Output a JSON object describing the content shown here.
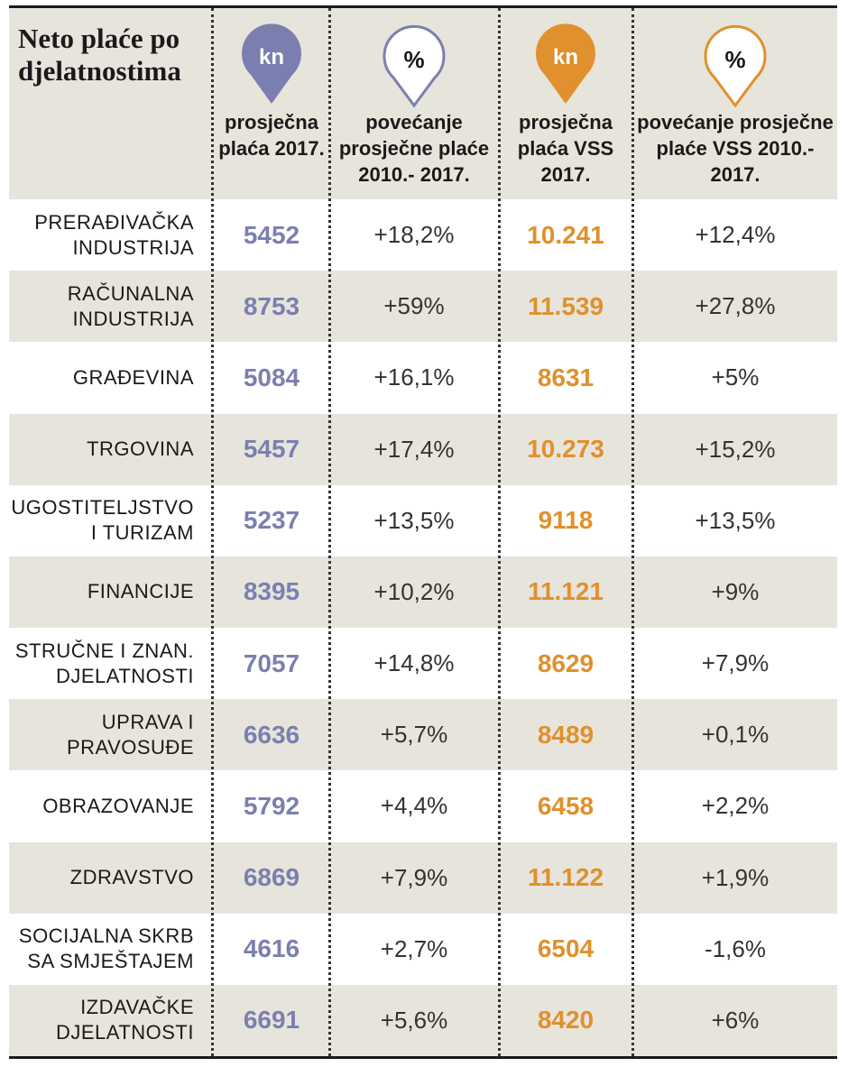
{
  "chart_data": {
    "type": "table",
    "title": "Neto plaće po djelatnostima",
    "columns": [
      {
        "key": "avg",
        "icon": "kn",
        "label": "prosječna plaća 2017."
      },
      {
        "key": "inc",
        "icon": "%",
        "label": "povećanje prosječne plaće 2010.- 2017."
      },
      {
        "key": "vss",
        "icon": "kn",
        "label": "prosječna plaća VSS 2017."
      },
      {
        "key": "incvss",
        "icon": "%",
        "label": "povećanje prosječne plaće VSS 2010.- 2017."
      }
    ],
    "rows": [
      {
        "name": "PRERAĐIVAČKA INDUSTRIJA",
        "avg": "5452",
        "inc": "+18,2%",
        "vss": "10.241",
        "incvss": "+12,4%"
      },
      {
        "name": "RAČUNALNA INDUSTRIJA",
        "avg": "8753",
        "inc": "+59%",
        "vss": "11.539",
        "incvss": "+27,8%"
      },
      {
        "name": "GRAĐEVINA",
        "avg": "5084",
        "inc": "+16,1%",
        "vss": "8631",
        "incvss": "+5%"
      },
      {
        "name": "TRGOVINA",
        "avg": "5457",
        "inc": "+17,4%",
        "vss": "10.273",
        "incvss": "+15,2%"
      },
      {
        "name": "UGOSTITELJSTVO I TURIZAM",
        "avg": "5237",
        "inc": "+13,5%",
        "vss": "9118",
        "incvss": "+13,5%"
      },
      {
        "name": "FINANCIJE",
        "avg": "8395",
        "inc": "+10,2%",
        "vss": "11.121",
        "incvss": "+9%"
      },
      {
        "name": "STRUČNE I ZNAN. DJELATNOSTI",
        "avg": "7057",
        "inc": "+14,8%",
        "vss": "8629",
        "incvss": "+7,9%"
      },
      {
        "name": "UPRAVA I PRAVOSUĐE",
        "avg": "6636",
        "inc": "+5,7%",
        "vss": "8489",
        "incvss": "+0,1%"
      },
      {
        "name": "OBRAZOVANJE",
        "avg": "5792",
        "inc": "+4,4%",
        "vss": "6458",
        "incvss": "+2,2%"
      },
      {
        "name": "ZDRAVSTVO",
        "avg": "6869",
        "inc": "+7,9%",
        "vss": "11.122",
        "incvss": "+1,9%"
      },
      {
        "name": "SOCIJALNA SKRB SA SMJEŠTAJEM",
        "avg": "4616",
        "inc": "+2,7%",
        "vss": "6504",
        "incvss": "-1,6%"
      },
      {
        "name": "IZDAVAČKE DJELATNOSTI",
        "avg": "6691",
        "inc": "+5,6%",
        "vss": "8420",
        "incvss": "+6%"
      }
    ],
    "colors": {
      "blue": "#7b7fb0",
      "orange": "#e0902c",
      "shade": "#e7e4dc",
      "text": "#1a1a1a"
    }
  }
}
